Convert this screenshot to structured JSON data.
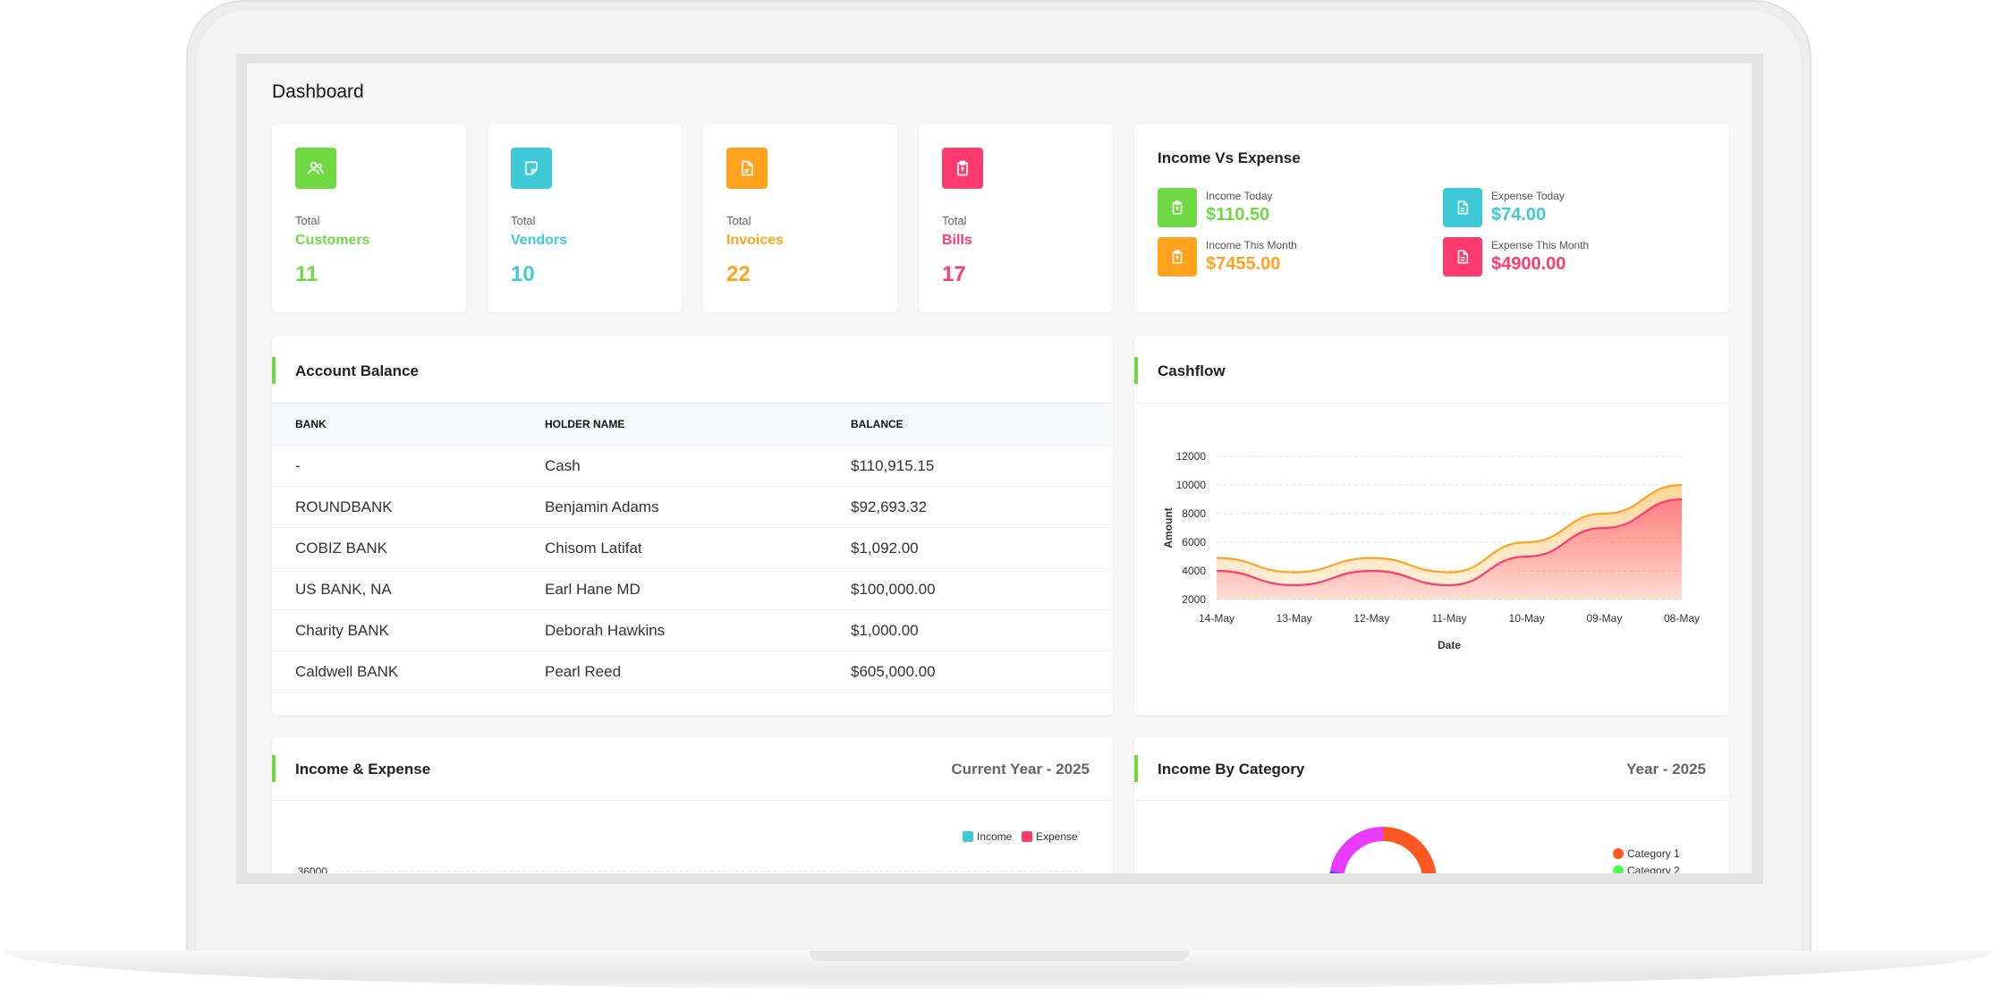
{
  "page": {
    "title": "Dashboard"
  },
  "stats": [
    {
      "total_label": "Total",
      "name": "Customers",
      "value": "11",
      "color": "#6fd943",
      "icon": "users-icon"
    },
    {
      "total_label": "Total",
      "name": "Vendors",
      "value": "10",
      "color": "#3ec9d6",
      "icon": "note-icon"
    },
    {
      "total_label": "Total",
      "name": "Invoices",
      "value": "22",
      "color": "#ffa21d",
      "icon": "file-invoice-icon"
    },
    {
      "total_label": "Total",
      "name": "Bills",
      "value": "17",
      "color": "#ff3a6e",
      "icon": "clipboard-icon"
    }
  ],
  "income_vs_expense": {
    "title": "Income Vs Expense",
    "items": [
      {
        "label": "Income Today",
        "value": "$110.50",
        "color": "#6fd943",
        "icon": "clipboard-icon"
      },
      {
        "label": "Expense Today",
        "value": "$74.00",
        "color": "#3ec9d6",
        "icon": "file-icon"
      },
      {
        "label": "Income This Month",
        "value": "$7455.00",
        "color": "#ffa21d",
        "icon": "clipboard-icon"
      },
      {
        "label": "Expense This Month",
        "value": "$4900.00",
        "color": "#ff3a6e",
        "icon": "file-icon"
      }
    ]
  },
  "account_balance": {
    "title": "Account Balance",
    "columns": [
      "BANK",
      "HOLDER NAME",
      "BALANCE"
    ],
    "rows": [
      [
        "-",
        "Cash",
        "$110,915.15"
      ],
      [
        "ROUNDBANK",
        "Benjamin Adams",
        "$92,693.32"
      ],
      [
        "COBIZ BANK",
        "Chisom Latifat",
        "$1,092.00"
      ],
      [
        "US BANK, NA",
        "Earl Hane MD",
        "$100,000.00"
      ],
      [
        "Charity BANK",
        "Deborah Hawkins",
        "$1,000.00"
      ],
      [
        "Caldwell BANK",
        "Pearl Reed",
        "$605,000.00"
      ]
    ]
  },
  "cashflow": {
    "title": "Cashflow",
    "colors": {
      "outer": "#ffa21d",
      "inner": "#ff3a6e"
    }
  },
  "income_expense": {
    "title": "Income & Expense",
    "period": "Current Year - 2025",
    "colors": {
      "income": "#3ec9d6",
      "expense": "#ff3a6e"
    }
  },
  "income_by_category": {
    "title": "Income By Category",
    "period": "Year - 2025",
    "colors": {
      "category_1": "#ff5722",
      "category_2": "#4cff4c",
      "category_3": "#e73cff",
      "category_4": "#3c3cff"
    }
  },
  "chart_data": [
    {
      "type": "area",
      "title": "",
      "xlabel": "Date",
      "ylabel": "Amount",
      "x": [
        "14-May",
        "13-May",
        "12-May",
        "11-May",
        "10-May",
        "09-May",
        "08-May"
      ],
      "y_ticks": [
        "2000",
        "4000",
        "6000",
        "8000",
        "10000",
        "12000"
      ],
      "ylim": [
        2000,
        12000
      ],
      "grid": true,
      "series": [
        {
          "values": [
            4900,
            3900,
            4900,
            3900,
            6000,
            8000,
            10000
          ]
        },
        {
          "values": [
            4000,
            3000,
            4000,
            3000,
            5000,
            7000,
            9000
          ]
        }
      ]
    },
    {
      "type": "bar",
      "title": "",
      "legend": "top-right",
      "y_ticks": [
        "36000"
      ],
      "grid": true,
      "series": [
        {
          "name": "Income",
          "values": []
        },
        {
          "name": "Expense",
          "values": []
        }
      ]
    },
    {
      "type": "pie",
      "title": "",
      "legend": "right",
      "categories": [
        "Category 1",
        "Category 2"
      ]
    }
  ]
}
